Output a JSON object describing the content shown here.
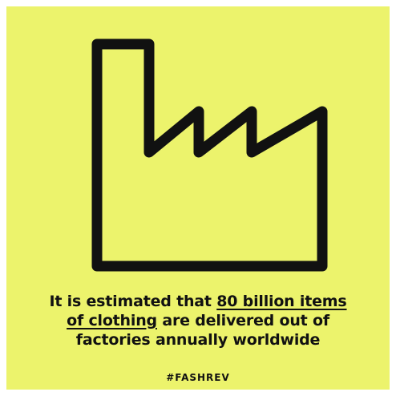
{
  "background_color": "#ecf36c",
  "icon": "factory-icon",
  "statement": {
    "line1_prefix": "It is estimated that ",
    "line1_highlight": "80 billion items",
    "line2_highlight": "of clothing",
    "line2_suffix": " are delivered out of",
    "line3": "factories annually worldwide"
  },
  "hashtag": "#FASHREV"
}
